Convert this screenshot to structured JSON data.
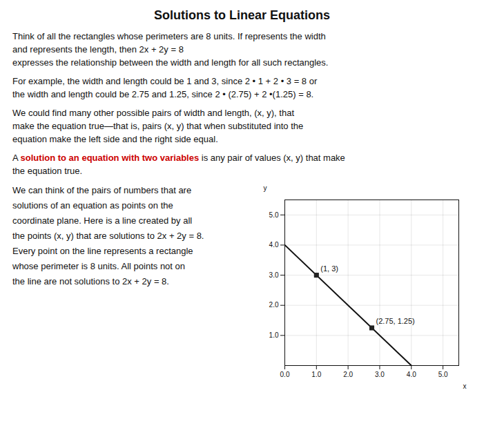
{
  "chart_data": {
    "type": "line",
    "title": "Solutions to Linear Equations",
    "x_label": "x",
    "y_label": "y",
    "xlim": [
      0,
      5.5
    ],
    "ylim": [
      0,
      5.5
    ],
    "xticks": [
      0,
      1,
      2,
      3,
      4,
      5
    ],
    "yticks": [
      1,
      2,
      3,
      4,
      5
    ],
    "grid": true,
    "series": [
      {
        "type": "line",
        "color": "#111111",
        "x": [
          0,
          4
        ],
        "values": [
          4,
          0
        ]
      },
      {
        "type": "scatter",
        "marker": "square",
        "color": "#222222",
        "x": [
          1,
          2.75
        ],
        "values": [
          3,
          1.25
        ],
        "value_labels": [
          "(1, 3)",
          "(2.75, 1.25)"
        ],
        "data_labels": true
      }
    ],
    "annotations": [
      [
        [
          {
            "text": "Think of all the rectangles whose perimeters are 8 units. If  represents the width"
          }
        ],
        [
          {
            "text": "and  represents the length, then "
          },
          {
            "text": "2x + 2y = 8"
          }
        ],
        [
          {
            "text": "expresses the relationship between the width and length for all such rectangles."
          }
        ]
      ],
      [
        [
          {
            "text": "For example, the width and length could be 1 and 3, since 2 • 1 + 2 • 3 = 8 or"
          }
        ],
        [
          {
            "text": " the width and length could be 2.75 and 1.25, since 2 • (2.75) + 2 •(1.25) = 8."
          }
        ]
      ],
      [
        [
          {
            "text": "We could find many other possible pairs of width and length,  (x, y), that"
          }
        ],
        [
          {
            "text": " make the equation true—that is, pairs (x, y) that when substituted into the"
          }
        ],
        [
          {
            "text": " equation make the left side and the right side equal."
          }
        ]
      ],
      [
        [
          {
            "text": "A "
          },
          {
            "text": "solution to an equation with two variables",
            "color": "#cc0000"
          },
          {
            "text": " is any pair of values (x, y) that make"
          }
        ],
        [
          {
            "text": " the equation true."
          }
        ]
      ],
      [
        [
          {
            "text": "We can think of the pairs of numbers that are"
          }
        ],
        [
          {
            "text": "solutions of an equation as points on the"
          }
        ],
        [
          {
            "text": "coordinate plane. Here is a line created by all"
          }
        ],
        [
          {
            "text": "the points (x, y) that are solutions to 2x + 2y = 8."
          }
        ],
        [
          {
            "text": "Every point on the line represents a rectangle"
          }
        ],
        [
          {
            "text": "whose perimeter is 8 units. All points not on"
          }
        ],
        [
          {
            "text": "the line are not solutions to 2x + 2y = 8."
          }
        ]
      ]
    ]
  }
}
